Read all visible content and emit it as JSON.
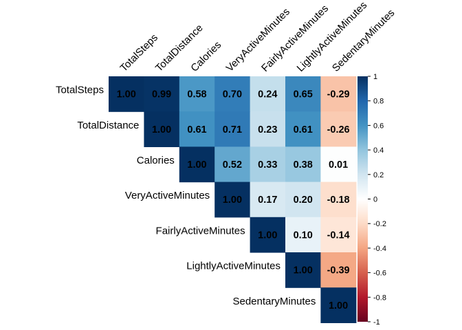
{
  "chart_data": {
    "type": "heatmap",
    "layout": "upper-triangle",
    "variables": [
      "TotalSteps",
      "TotalDistance",
      "Calories",
      "VeryActiveMinutes",
      "FairlyActiveMinutes",
      "LightlyActiveMinutes",
      "SedentaryMinutes"
    ],
    "matrix": [
      [
        1.0,
        0.99,
        0.58,
        0.7,
        0.24,
        0.65,
        -0.29
      ],
      [
        null,
        1.0,
        0.61,
        0.71,
        0.23,
        0.61,
        -0.26
      ],
      [
        null,
        null,
        1.0,
        0.52,
        0.33,
        0.38,
        0.01
      ],
      [
        null,
        null,
        null,
        1.0,
        0.17,
        0.2,
        -0.18
      ],
      [
        null,
        null,
        null,
        null,
        1.0,
        0.1,
        -0.14
      ],
      [
        null,
        null,
        null,
        null,
        null,
        1.0,
        -0.39
      ],
      [
        null,
        null,
        null,
        null,
        null,
        null,
        1.0
      ]
    ],
    "colorbar": {
      "min": -1,
      "max": 1,
      "ticks": [
        -1,
        -0.8,
        -0.6,
        -0.4,
        -0.2,
        0,
        0.2,
        0.4,
        0.6,
        0.8,
        1
      ],
      "tick_labels": [
        "-1",
        "-0.8",
        "-0.6",
        "-0.4",
        "-0.2",
        "0",
        "0.2",
        "0.4",
        "0.6",
        "0.8",
        "1"
      ],
      "colors": [
        "#67001f",
        "#b2182b",
        "#d6604d",
        "#f4a582",
        "#fddbc7",
        "#ffffff",
        "#d1e5f0",
        "#92c5de",
        "#4393c3",
        "#2166ac",
        "#053061"
      ]
    },
    "value_format": "2 decimals",
    "grid": false
  }
}
